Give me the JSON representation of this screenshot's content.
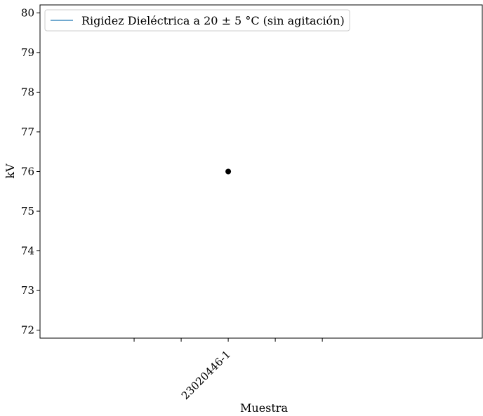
{
  "chart_data": {
    "type": "scatter",
    "title": "",
    "xlabel": "Muestra",
    "ylabel": "kV",
    "categories": [
      "23020446-1"
    ],
    "series": [
      {
        "name": "Rigidez Dieléctrica a 20 ± 5 °C (sin agitación)",
        "legend_marker": "line",
        "color": "#1f77b4",
        "point_color": "#000000",
        "points": [
          {
            "x": "23020446-1",
            "y": 76
          }
        ]
      }
    ],
    "ylim": [
      71.8,
      80.2
    ],
    "yticks": [
      72,
      73,
      74,
      75,
      76,
      77,
      78,
      79,
      80
    ],
    "xlim": [
      -2,
      2.7
    ],
    "xticks": [
      -1,
      -0.5,
      0,
      0.5,
      1
    ],
    "xtick_labels": [
      "",
      "",
      "23020446-1",
      "",
      ""
    ],
    "grid": false,
    "legend_position": "top-left"
  }
}
